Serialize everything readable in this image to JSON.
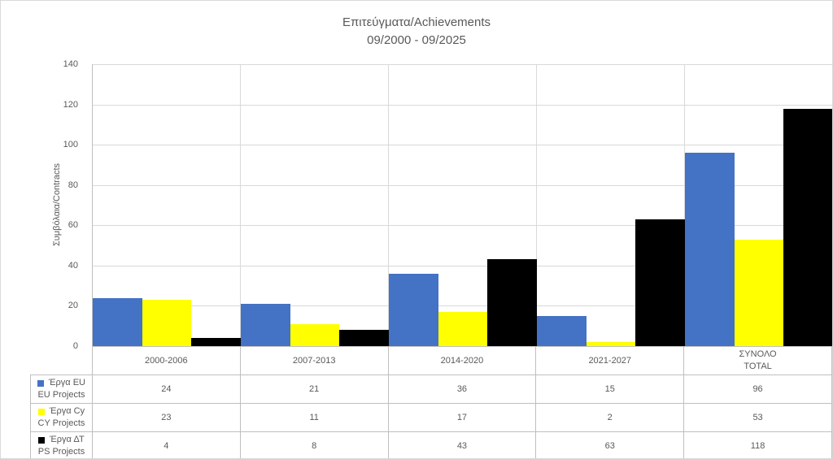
{
  "title": {
    "line1": "Επιτεύγματα/Achievements",
    "line2": "09/2000 - 09/2025"
  },
  "chart_data": {
    "type": "bar",
    "title": "Επιτεύγματα/Achievements 09/2000 - 09/2025",
    "ylabel": "Συμβόλαια/Contracts",
    "xlabel": "",
    "ylim": [
      0,
      140
    ],
    "yticks": [
      0,
      20,
      40,
      60,
      80,
      100,
      120,
      140
    ],
    "grid": true,
    "legend_position": "table-rows-left",
    "categories": [
      "2000-2006",
      "2007-2013",
      "2014-2020",
      "2021-2027",
      "ΣΥΝΟΛΟ\nTOTAL"
    ],
    "series": [
      {
        "key": "eu",
        "name": "Έργα EU",
        "name_en": "EU Projects",
        "color": "#4472C4",
        "values": [
          24,
          21,
          36,
          15,
          96
        ]
      },
      {
        "key": "cy",
        "name": "Έργα Cy",
        "name_en": "CY Projects",
        "color": "#FFFF00",
        "values": [
          23,
          11,
          17,
          2,
          53
        ]
      },
      {
        "key": "ps",
        "name": "Έργα ΔΤ",
        "name_en": "PS Projects",
        "color": "#000000",
        "values": [
          4,
          8,
          43,
          63,
          118
        ]
      }
    ]
  },
  "colors": {
    "text": "#595959",
    "gridline": "#D9D9D9",
    "table_border": "#BFBFBF",
    "background": "#FFFFFF"
  }
}
